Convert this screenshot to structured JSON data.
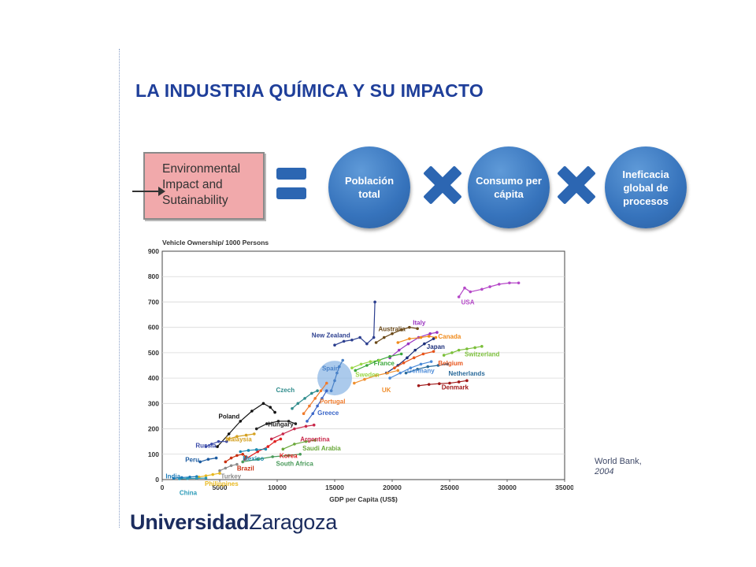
{
  "page": {
    "title": "LA INDUSTRIA QUÍMICA Y SU IMPACTO",
    "accent_color": "#1f3f9a"
  },
  "equation": {
    "lhs_label": "Environmental\nImpact and\nSutainability",
    "lhs_color": "#f1a9ab",
    "equals_icon": "equals-icon",
    "times_icon": "multiply-icon",
    "factors": [
      {
        "label": "Población total"
      },
      {
        "label": "Consumo per cápita"
      },
      {
        "label": "Ineficacia global de procesos"
      }
    ],
    "factor_color": "#3673bc"
  },
  "source": {
    "name": "World Bank,",
    "year": "2004"
  },
  "logo": {
    "bold": "Universidad",
    "regular": "Zaragoza"
  },
  "chart_data": {
    "type": "scatter",
    "title": "Vehicle Ownership/ 1000 Persons",
    "xlabel": "GDP per Capita (US$)",
    "ylabel": "",
    "xlim": [
      0,
      35000
    ],
    "ylim": [
      0,
      900
    ],
    "xticks": [
      0,
      5000,
      10000,
      15000,
      20000,
      25000,
      30000,
      35000
    ],
    "yticks": [
      0,
      100,
      200,
      300,
      400,
      500,
      600,
      700,
      800,
      900
    ],
    "grid": true,
    "highlight": {
      "label": "Spain",
      "center": [
        15000,
        400
      ],
      "color": "#8fb8e6"
    },
    "series": [
      {
        "name": "USA",
        "color": "#b548c8",
        "points": [
          [
            25800,
            720
          ],
          [
            26300,
            755
          ],
          [
            26800,
            740
          ],
          [
            27800,
            750
          ],
          [
            28500,
            760
          ],
          [
            29300,
            770
          ],
          [
            30200,
            775
          ],
          [
            31000,
            775
          ]
        ]
      },
      {
        "name": "New Zealand",
        "color": "#2c3f8f",
        "points": [
          [
            15000,
            530
          ],
          [
            15800,
            545
          ],
          [
            16500,
            550
          ],
          [
            17200,
            560
          ],
          [
            17800,
            535
          ],
          [
            18400,
            560
          ],
          [
            18500,
            700
          ]
        ]
      },
      {
        "name": "Australia",
        "color": "#6b4a1a",
        "points": [
          [
            18600,
            540
          ],
          [
            19300,
            560
          ],
          [
            20000,
            575
          ],
          [
            20800,
            590
          ],
          [
            21500,
            600
          ],
          [
            22200,
            595
          ]
        ]
      },
      {
        "name": "Italy",
        "color": "#9a35c0",
        "points": [
          [
            19800,
            480
          ],
          [
            20600,
            510
          ],
          [
            21400,
            535
          ],
          [
            22300,
            560
          ],
          [
            23300,
            575
          ],
          [
            23900,
            580
          ]
        ]
      },
      {
        "name": "Canada",
        "color": "#f08a1a",
        "points": [
          [
            20500,
            540
          ],
          [
            21500,
            555
          ],
          [
            22500,
            560
          ],
          [
            23200,
            565
          ],
          [
            23800,
            560
          ]
        ]
      },
      {
        "name": "Japan",
        "color": "#1c2f7a",
        "points": [
          [
            19500,
            420
          ],
          [
            20500,
            450
          ],
          [
            21300,
            480
          ],
          [
            22000,
            510
          ],
          [
            22800,
            535
          ],
          [
            23600,
            555
          ]
        ]
      },
      {
        "name": "Switzerland",
        "color": "#7bbf3a",
        "points": [
          [
            24500,
            490
          ],
          [
            25200,
            500
          ],
          [
            25800,
            510
          ],
          [
            26500,
            515
          ],
          [
            27200,
            520
          ],
          [
            27800,
            525
          ]
        ]
      },
      {
        "name": "France",
        "color": "#3aa63a",
        "points": [
          [
            16800,
            430
          ],
          [
            17800,
            450
          ],
          [
            18800,
            470
          ],
          [
            19800,
            485
          ],
          [
            20800,
            495
          ]
        ]
      },
      {
        "name": "Belgium",
        "color": "#e8541a",
        "points": [
          [
            20200,
            440
          ],
          [
            21000,
            460
          ],
          [
            21900,
            480
          ],
          [
            22700,
            495
          ],
          [
            23600,
            505
          ]
        ]
      },
      {
        "name": "Germany",
        "color": "#4a8ad8",
        "points": [
          [
            19800,
            400
          ],
          [
            20700,
            420
          ],
          [
            21600,
            440
          ],
          [
            22500,
            455
          ],
          [
            23400,
            465
          ]
        ]
      },
      {
        "name": "Netherlands",
        "color": "#2a6a9a",
        "points": [
          [
            21200,
            420
          ],
          [
            22200,
            435
          ],
          [
            23100,
            445
          ],
          [
            24000,
            450
          ],
          [
            24800,
            455
          ]
        ]
      },
      {
        "name": "Sweden",
        "color": "#9ad848",
        "points": [
          [
            16500,
            440
          ],
          [
            17300,
            455
          ],
          [
            18100,
            465
          ],
          [
            18900,
            470
          ]
        ]
      },
      {
        "name": "UK",
        "color": "#f09030",
        "points": [
          [
            16700,
            380
          ],
          [
            17600,
            395
          ],
          [
            18600,
            410
          ],
          [
            19600,
            420
          ],
          [
            20500,
            430
          ]
        ]
      },
      {
        "name": "Denmark",
        "color": "#a01818",
        "points": [
          [
            22300,
            370
          ],
          [
            23200,
            375
          ],
          [
            24100,
            378
          ],
          [
            25000,
            380
          ],
          [
            25800,
            385
          ],
          [
            26500,
            390
          ]
        ]
      },
      {
        "name": "Spain",
        "color": "#4a82c8",
        "points": [
          [
            14700,
            350
          ],
          [
            15000,
            390
          ],
          [
            15200,
            420
          ],
          [
            15400,
            445
          ],
          [
            15700,
            470
          ]
        ]
      },
      {
        "name": "Portugal",
        "color": "#f07a2a",
        "points": [
          [
            12300,
            260
          ],
          [
            12800,
            290
          ],
          [
            13300,
            320
          ],
          [
            13800,
            350
          ],
          [
            14300,
            380
          ]
        ]
      },
      {
        "name": "Czech",
        "color": "#2f8c8c",
        "points": [
          [
            11300,
            280
          ],
          [
            11800,
            300
          ],
          [
            12400,
            320
          ],
          [
            13000,
            340
          ],
          [
            13500,
            350
          ]
        ]
      },
      {
        "name": "Greece",
        "color": "#3a66c8",
        "points": [
          [
            12600,
            230
          ],
          [
            13100,
            260
          ],
          [
            13500,
            290
          ],
          [
            13900,
            320
          ],
          [
            14300,
            350
          ]
        ]
      },
      {
        "name": "Poland",
        "color": "#111111",
        "points": [
          [
            4800,
            130
          ],
          [
            5800,
            180
          ],
          [
            6800,
            230
          ],
          [
            7800,
            270
          ],
          [
            8800,
            300
          ],
          [
            9400,
            285
          ],
          [
            9800,
            265
          ]
        ]
      },
      {
        "name": "Hungary",
        "color": "#222222",
        "points": [
          [
            8200,
            200
          ],
          [
            9100,
            220
          ],
          [
            10100,
            230
          ],
          [
            11000,
            230
          ],
          [
            11600,
            220
          ]
        ]
      },
      {
        "name": "Argentina",
        "color": "#c8284a",
        "points": [
          [
            9500,
            160
          ],
          [
            10500,
            180
          ],
          [
            11500,
            200
          ],
          [
            12500,
            210
          ],
          [
            13200,
            215
          ]
        ]
      },
      {
        "name": "Saudi Arabia",
        "color": "#6aa83a",
        "points": [
          [
            10500,
            120
          ],
          [
            11500,
            140
          ],
          [
            12500,
            150
          ],
          [
            13300,
            155
          ]
        ]
      },
      {
        "name": "Korea",
        "color": "#e02020",
        "points": [
          [
            7200,
            80
          ],
          [
            8300,
            110
          ],
          [
            9200,
            130
          ],
          [
            9800,
            150
          ],
          [
            10300,
            160
          ]
        ]
      },
      {
        "name": "Malaysia",
        "color": "#d4a020",
        "points": [
          [
            5800,
            160
          ],
          [
            6500,
            170
          ],
          [
            7300,
            175
          ],
          [
            8000,
            180
          ]
        ]
      },
      {
        "name": "Russia",
        "color": "#3a4aa8",
        "points": [
          [
            3800,
            130
          ],
          [
            4300,
            140
          ],
          [
            4900,
            150
          ],
          [
            5600,
            150
          ]
        ]
      },
      {
        "name": "Mexico",
        "color": "#1a8ab0",
        "points": [
          [
            6800,
            110
          ],
          [
            7500,
            115
          ],
          [
            8200,
            118
          ],
          [
            9000,
            120
          ]
        ]
      },
      {
        "name": "South Africa",
        "color": "#4a9a5a",
        "points": [
          [
            7000,
            70
          ],
          [
            8300,
            80
          ],
          [
            9600,
            90
          ],
          [
            11000,
            95
          ],
          [
            12000,
            100
          ]
        ]
      },
      {
        "name": "Peru",
        "color": "#1a5aa0",
        "points": [
          [
            3300,
            70
          ],
          [
            4000,
            80
          ],
          [
            4700,
            85
          ]
        ]
      },
      {
        "name": "Brazil",
        "color": "#c83010",
        "points": [
          [
            5500,
            70
          ],
          [
            6000,
            85
          ],
          [
            6500,
            95
          ],
          [
            7000,
            100
          ],
          [
            7300,
            90
          ]
        ]
      },
      {
        "name": "Turkey",
        "color": "#8a8a8a",
        "points": [
          [
            5000,
            35
          ],
          [
            5500,
            45
          ],
          [
            6000,
            55
          ],
          [
            6500,
            60
          ]
        ]
      },
      {
        "name": "Philippines",
        "color": "#e8b820",
        "points": [
          [
            3200,
            10
          ],
          [
            3800,
            15
          ],
          [
            4400,
            20
          ],
          [
            5000,
            25
          ]
        ]
      },
      {
        "name": "India",
        "color": "#1a7ab8",
        "points": [
          [
            1000,
            5
          ],
          [
            1700,
            8
          ],
          [
            2400,
            10
          ],
          [
            3000,
            12
          ]
        ]
      },
      {
        "name": "China",
        "color": "#2a9ab8",
        "points": [
          [
            1500,
            3
          ],
          [
            2200,
            4
          ],
          [
            3000,
            5
          ],
          [
            3800,
            6
          ]
        ]
      }
    ],
    "labels": [
      {
        "text": "USA",
        "x": 26000,
        "y": 690,
        "color": "#b548c8"
      },
      {
        "text": "Australia",
        "x": 18800,
        "y": 585,
        "color": "#6b4a1a"
      },
      {
        "text": "Italy",
        "x": 21800,
        "y": 610,
        "color": "#9a35c0"
      },
      {
        "text": "New Zealand",
        "x": 13000,
        "y": 560,
        "color": "#2c3f8f"
      },
      {
        "text": "Canada",
        "x": 24000,
        "y": 555,
        "color": "#f08a1a"
      },
      {
        "text": "Japan",
        "x": 23000,
        "y": 515,
        "color": "#1c2f7a"
      },
      {
        "text": "Switzerland",
        "x": 26300,
        "y": 485,
        "color": "#7bbf3a"
      },
      {
        "text": "France",
        "x": 18400,
        "y": 450,
        "color": "#3aa63a"
      },
      {
        "text": "Belgium",
        "x": 24000,
        "y": 450,
        "color": "#e8541a"
      },
      {
        "text": "Germany",
        "x": 21300,
        "y": 420,
        "color": "#4a8ad8"
      },
      {
        "text": "Netherlands",
        "x": 24900,
        "y": 410,
        "color": "#2a6a9a"
      },
      {
        "text": "Spain",
        "x": 13900,
        "y": 430,
        "color": "#4a82c8"
      },
      {
        "text": "Sweden",
        "x": 16800,
        "y": 405,
        "color": "#9ad848"
      },
      {
        "text": "UK",
        "x": 19100,
        "y": 345,
        "color": "#f09030"
      },
      {
        "text": "Denmark",
        "x": 24300,
        "y": 355,
        "color": "#a01818"
      },
      {
        "text": "Czech",
        "x": 9900,
        "y": 345,
        "color": "#2f8c8c"
      },
      {
        "text": "Portugal",
        "x": 13700,
        "y": 300,
        "color": "#f07a2a"
      },
      {
        "text": "Greece",
        "x": 13500,
        "y": 255,
        "color": "#3a66c8"
      },
      {
        "text": "Poland",
        "x": 4900,
        "y": 240,
        "color": "#111111"
      },
      {
        "text": "Hungary",
        "x": 9200,
        "y": 210,
        "color": "#222222"
      },
      {
        "text": "Argentina",
        "x": 12000,
        "y": 150,
        "color": "#c8284a"
      },
      {
        "text": "Malaysia",
        "x": 5500,
        "y": 150,
        "color": "#d4a020"
      },
      {
        "text": "Saudi Arabia",
        "x": 12200,
        "y": 115,
        "color": "#6aa83a"
      },
      {
        "text": "Russia",
        "x": 2900,
        "y": 125,
        "color": "#3a4aa8"
      },
      {
        "text": "Korea",
        "x": 10200,
        "y": 85,
        "color": "#e02020"
      },
      {
        "text": "Mexico",
        "x": 7000,
        "y": 75,
        "color": "#1a8ab0"
      },
      {
        "text": "South Africa",
        "x": 9900,
        "y": 55,
        "color": "#4a9a5a"
      },
      {
        "text": "Peru",
        "x": 2000,
        "y": 70,
        "color": "#1a5aa0"
      },
      {
        "text": "Brazil",
        "x": 6500,
        "y": 35,
        "color": "#c83010"
      },
      {
        "text": "Turkey",
        "x": 5100,
        "y": 5,
        "color": "#8a8a8a"
      },
      {
        "text": "India",
        "x": 300,
        "y": 5,
        "color": "#1a7ab8"
      },
      {
        "text": "Philippines",
        "x": 3700,
        "y": -25,
        "color": "#e8b820"
      },
      {
        "text": "China",
        "x": 1500,
        "y": -60,
        "color": "#2a9ab8"
      }
    ]
  }
}
